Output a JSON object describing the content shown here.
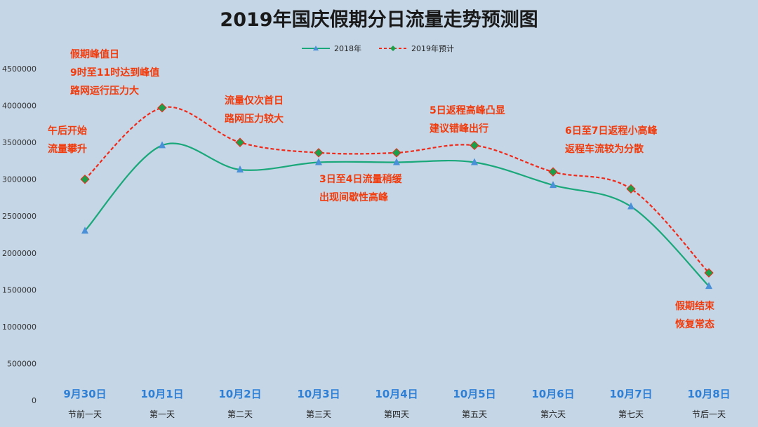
{
  "chart_data": {
    "type": "line",
    "title": "2019年国庆假期分日流量走势预测图",
    "categories": [
      "9月30日",
      "10月1日",
      "10月2日",
      "10月3日",
      "10月4日",
      "10月5日",
      "10月6日",
      "10月7日",
      "10月8日"
    ],
    "subcategories": [
      "节前一天",
      "第一天",
      "第二天",
      "第三天",
      "第四天",
      "第五天",
      "第六天",
      "第七天",
      "节后一天"
    ],
    "ylim": [
      0,
      4500000
    ],
    "yticks": [
      "0",
      "500000",
      "1000000",
      "1500000",
      "2000000",
      "2500000",
      "3000000",
      "3500000",
      "4000000",
      "4500000"
    ],
    "series": [
      {
        "name": "2018年",
        "color": "#1aa87a",
        "marker_color": "#4a90d9",
        "values": [
          2300000,
          3460000,
          3130000,
          3230000,
          3230000,
          3230000,
          2920000,
          2630000,
          1550000
        ]
      },
      {
        "name": "2019年预计",
        "color": "#f02a1a",
        "marker_color": "#1aa04a",
        "dashed": true,
        "values": [
          3000000,
          3970000,
          3500000,
          3360000,
          3360000,
          3460000,
          3100000,
          2870000,
          1730000
        ]
      }
    ],
    "legend": "top-center",
    "grid": false,
    "annotations": [
      {
        "lines": [
          "午后开始",
          "流量攀升"
        ]
      },
      {
        "lines": [
          "假期峰值日",
          "9时至11时达到峰值",
          "路网运行压力大"
        ]
      },
      {
        "lines": [
          "流量仅次首日",
          "路网压力较大"
        ]
      },
      {
        "lines": [
          "3日至4日流量稍缓",
          "出现间歇性高峰"
        ]
      },
      {
        "lines": [
          "5日返程高峰凸显",
          "建议错峰出行"
        ]
      },
      {
        "lines": [
          "6日至7日返程小高峰",
          "返程车流较为分散"
        ]
      },
      {
        "lines": [
          "假期结束",
          "恢复常态"
        ]
      }
    ]
  }
}
